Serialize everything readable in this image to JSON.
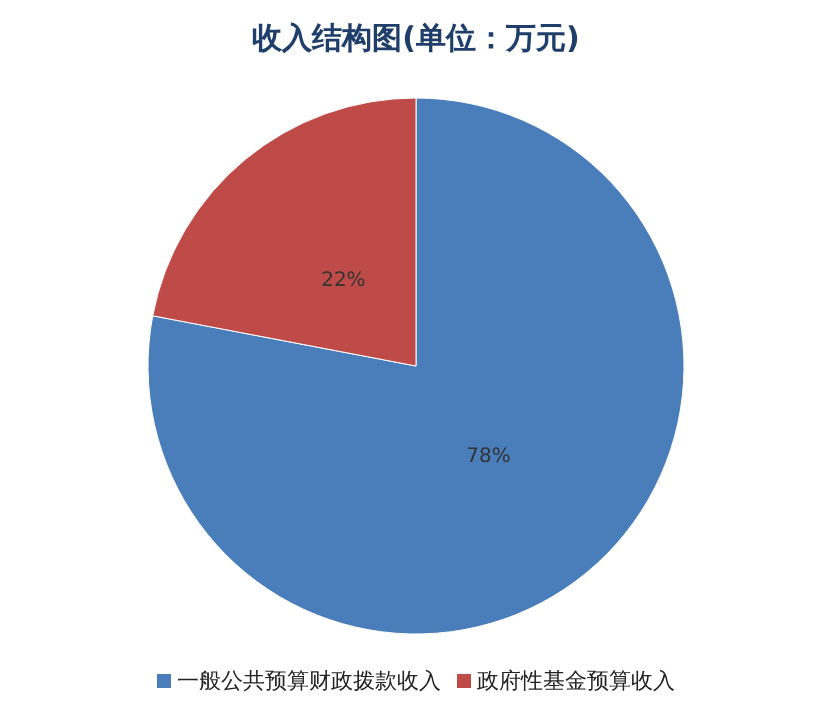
{
  "chart_data": {
    "type": "pie",
    "title": "收入结构图(单位：万元)",
    "categories": [
      "一般公共预算财政拨款收入",
      "政府性基金预算收入"
    ],
    "values": [
      78,
      22
    ],
    "colors": [
      "#4a7ebb",
      "#be4b48"
    ],
    "value_labels": [
      "78%",
      "22%"
    ],
    "legend": "bottom"
  }
}
